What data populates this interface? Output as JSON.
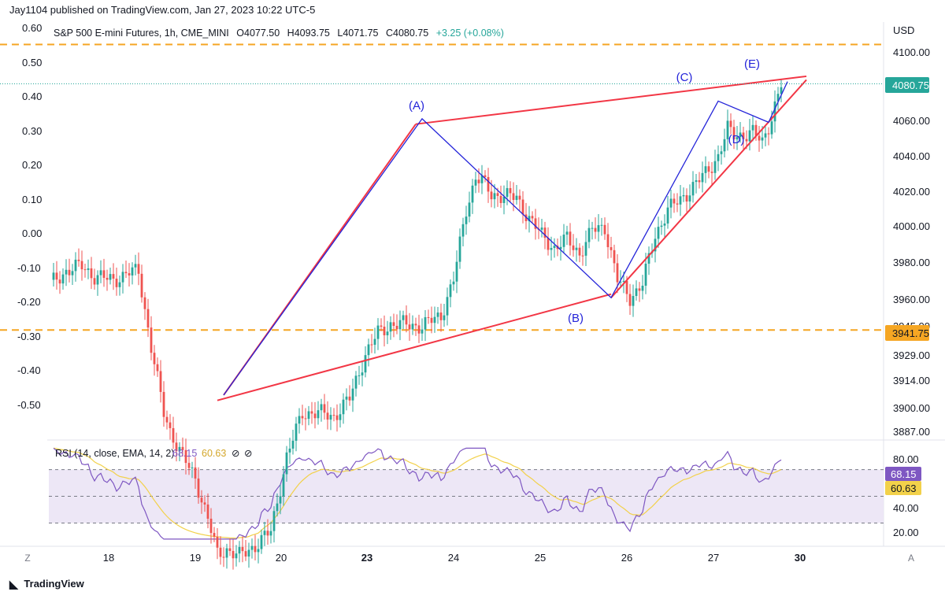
{
  "header": {
    "published": "Jay1104 published on TradingView.com, Jan 27, 2023 10:22 UTC-5"
  },
  "footer": {
    "brand": "TradingView"
  },
  "colors": {
    "up": "#26a69a",
    "down": "#ef5350",
    "wedge": "#f23645",
    "wave": "#2424d9",
    "level": "#f5a623",
    "rsi_line": "#7e57c2",
    "rsi_ma": "#f2d14a",
    "rsi_band": "#ede7f6"
  },
  "chart_data": [
    {
      "type": "candlestick",
      "title": "S&P 500 E-mini Futures, 1h, CME_MINI",
      "ohlc_label": {
        "o": "O4077.50",
        "h": "H4093.75",
        "l": "L4071.75",
        "c": "C4080.75",
        "chg": "+3.25 (+0.08%)"
      },
      "currency": "USD",
      "y_ticks_right": [
        "4100.00",
        "4080.75",
        "4060.00",
        "4040.00",
        "4020.00",
        "4000.00",
        "3980.00",
        "3960.00",
        "3945.00",
        "3941.75",
        "3929.00",
        "3914.00",
        "3900.00",
        "3887.00"
      ],
      "y_ticks_left": [
        "0.60",
        "0.50",
        "0.40",
        "0.30",
        "0.20",
        "0.10",
        "0.00",
        "-0.10",
        "-0.20",
        "-0.30",
        "-0.40",
        "-0.50"
      ],
      "last_price": "4080.75",
      "level_label": "3941.75",
      "x_ticks": [
        "18",
        "19",
        "20",
        "23",
        "24",
        "25",
        "26",
        "27",
        "30"
      ],
      "wave_labels": [
        "(A)",
        "(B)",
        "(C)",
        "(D)",
        "(E)"
      ],
      "waypoints": [
        {
          "x": 0,
          "p": 3968
        },
        {
          "x": 5,
          "p": 3975
        },
        {
          "x": 10,
          "p": 3978
        },
        {
          "x": 14,
          "p": 3972
        },
        {
          "x": 20,
          "p": 3970
        },
        {
          "x": 25,
          "p": 3974
        },
        {
          "x": 28,
          "p": 3975
        },
        {
          "x": 32,
          "p": 3932
        },
        {
          "x": 36,
          "p": 3895
        },
        {
          "x": 38,
          "p": 3885
        },
        {
          "x": 42,
          "p": 3870
        },
        {
          "x": 46,
          "p": 3858
        },
        {
          "x": 50,
          "p": 3835
        },
        {
          "x": 53,
          "p": 3815
        },
        {
          "x": 56,
          "p": 3818
        },
        {
          "x": 60,
          "p": 3814
        },
        {
          "x": 65,
          "p": 3820
        },
        {
          "x": 70,
          "p": 3828
        },
        {
          "x": 75,
          "p": 3870
        },
        {
          "x": 80,
          "p": 3895
        },
        {
          "x": 85,
          "p": 3895
        },
        {
          "x": 90,
          "p": 3893
        },
        {
          "x": 95,
          "p": 3903
        },
        {
          "x": 100,
          "p": 3928
        },
        {
          "x": 104,
          "p": 3940
        },
        {
          "x": 108,
          "p": 3945
        },
        {
          "x": 112,
          "p": 3945
        },
        {
          "x": 118,
          "p": 3944
        },
        {
          "x": 124,
          "p": 3950
        },
        {
          "x": 128,
          "p": 3970
        },
        {
          "x": 132,
          "p": 4010
        },
        {
          "x": 135,
          "p": 4028
        },
        {
          "x": 137,
          "p": 4026
        },
        {
          "x": 140,
          "p": 4018
        },
        {
          "x": 144,
          "p": 4018
        },
        {
          "x": 148,
          "p": 4016
        },
        {
          "x": 152,
          "p": 4005
        },
        {
          "x": 156,
          "p": 3995
        },
        {
          "x": 160,
          "p": 3988
        },
        {
          "x": 164,
          "p": 3993
        },
        {
          "x": 168,
          "p": 3985
        },
        {
          "x": 172,
          "p": 3998
        },
        {
          "x": 176,
          "p": 4000
        },
        {
          "x": 180,
          "p": 3970
        },
        {
          "x": 184,
          "p": 3960
        },
        {
          "x": 188,
          "p": 3968
        },
        {
          "x": 192,
          "p": 3995
        },
        {
          "x": 196,
          "p": 4010
        },
        {
          "x": 200,
          "p": 4015
        },
        {
          "x": 204,
          "p": 4023
        },
        {
          "x": 208,
          "p": 4030
        },
        {
          "x": 212,
          "p": 4040
        },
        {
          "x": 215,
          "p": 4055
        },
        {
          "x": 217,
          "p": 4052
        },
        {
          "x": 220,
          "p": 4052
        },
        {
          "x": 223,
          "p": 4053
        },
        {
          "x": 226,
          "p": 4048
        },
        {
          "x": 229,
          "p": 4062
        },
        {
          "x": 232,
          "p": 4080
        }
      ],
      "wedge_lines": [
        {
          "name": "upper",
          "from": {
            "x": 116,
            "p": 4058
          },
          "to": {
            "x": 240,
            "p": 4085
          }
        },
        {
          "name": "lower",
          "from": {
            "x": 53,
            "p": 3902
          },
          "to": {
            "x": 178,
            "p": 3962
          }
        },
        {
          "name": "impulse",
          "from": {
            "x": 55,
            "p": 3905
          },
          "to": {
            "x": 116,
            "p": 4058
          }
        },
        {
          "name": "lower-right",
          "from": {
            "x": 178,
            "p": 3960
          },
          "to": {
            "x": 240,
            "p": 4083
          }
        }
      ],
      "wave_path": [
        {
          "x": 55,
          "p": 3905
        },
        {
          "x": 118,
          "p": 4061
        },
        {
          "x": 178,
          "p": 3960
        },
        {
          "x": 212,
          "p": 4071
        },
        {
          "x": 228,
          "p": 4059
        },
        {
          "x": 234,
          "p": 4082
        }
      ],
      "levels": [
        {
          "name": "top-level",
          "p": 4103
        },
        {
          "name": "bottom-level",
          "p": 3941.75
        }
      ]
    },
    {
      "type": "line",
      "title": "RSI",
      "params": "RSI (14, close, EMA, 14, 2)",
      "rsi_value": "68.15",
      "ma_value": "60.63",
      "icons": [
        "⊘",
        "⊘"
      ],
      "y_ticks": [
        "80.00",
        "40.00",
        "20.00"
      ],
      "bands": [
        30,
        50,
        70
      ],
      "ylim": [
        15,
        88
      ]
    }
  ]
}
